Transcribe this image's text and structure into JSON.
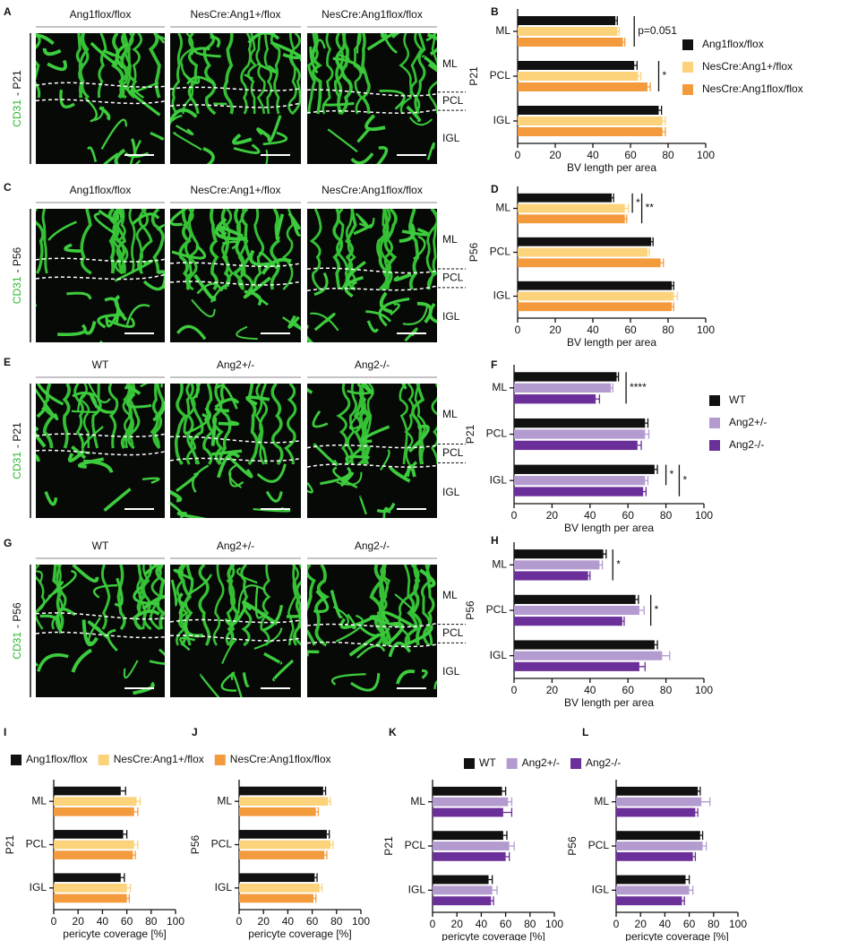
{
  "image_panels": [
    {
      "panel": "A",
      "stain": "CD31",
      "age": "- P21",
      "genotypes": [
        "Ang1flox/flox",
        "NesCre:Ang1+/flox",
        "NesCre:Ang1flox/flox"
      ],
      "layers": [
        "ML",
        "PCL",
        "IGL"
      ]
    },
    {
      "panel": "C",
      "stain": "CD31",
      "age": "- P56",
      "genotypes": [
        "Ang1flox/flox",
        "NesCre:Ang1+/flox",
        "NesCre:Ang1flox/flox"
      ],
      "layers": [
        "ML",
        "PCL",
        "IGL"
      ]
    },
    {
      "panel": "E",
      "stain": "CD31",
      "age": "- P21",
      "genotypes": [
        "WT",
        "Ang2+/-",
        "Ang2-/-"
      ],
      "layers": [
        "ML",
        "PCL",
        "IGL"
      ]
    },
    {
      "panel": "G",
      "stain": "CD31",
      "age": "- P56",
      "genotypes": [
        "WT",
        "Ang2+/-",
        "Ang2-/-"
      ],
      "layers": [
        "ML",
        "PCL",
        "IGL"
      ]
    }
  ],
  "chart_data": [
    {
      "type": "bar",
      "panel": "B",
      "orientation": "horizontal",
      "ylabel": "P21",
      "xlabel": "BV length per area",
      "categories": [
        "ML",
        "PCL",
        "IGL"
      ],
      "series": [
        {
          "name": "Ang1flox/flox",
          "color": "#111111",
          "values": [
            52,
            62,
            75
          ],
          "errors": [
            1,
            1.5,
            1.5
          ]
        },
        {
          "name": "NesCre:Ang1+/flox",
          "color": "#fcd27a",
          "values": [
            53,
            64,
            77
          ],
          "errors": [
            1,
            1.5,
            1.5
          ]
        },
        {
          "name": "NesCre:Ang1flox/flox",
          "color": "#f39a3c",
          "values": [
            56,
            69,
            77
          ],
          "errors": [
            1,
            1.5,
            1.5
          ]
        }
      ],
      "xlim": [
        0,
        100
      ],
      "xticks": [
        0,
        20,
        40,
        60,
        80,
        100
      ],
      "legend": "right",
      "annotations": [
        "p=0.051",
        "*"
      ]
    },
    {
      "type": "bar",
      "panel": "D",
      "orientation": "horizontal",
      "ylabel": "P56",
      "xlabel": "BV length per area",
      "categories": [
        "ML",
        "PCL",
        "IGL"
      ],
      "series": [
        {
          "color": "#111111",
          "values": [
            50,
            71,
            82
          ],
          "errors": [
            1,
            1,
            1
          ]
        },
        {
          "color": "#fcd27a",
          "values": [
            57,
            69,
            83
          ],
          "errors": [
            2,
            1,
            2
          ]
        },
        {
          "color": "#f39a3c",
          "values": [
            57,
            76,
            82
          ],
          "errors": [
            1,
            1.5,
            1
          ]
        }
      ],
      "xlim": [
        0,
        100
      ],
      "xticks": [
        0,
        20,
        40,
        60,
        80,
        100
      ],
      "annotations": [
        "*",
        "**"
      ]
    },
    {
      "type": "bar",
      "panel": "F",
      "orientation": "horizontal",
      "ylabel": "P21",
      "xlabel": "BV length per area",
      "categories": [
        "ML",
        "PCL",
        "IGL"
      ],
      "series": [
        {
          "name": "WT",
          "color": "#111111",
          "values": [
            54,
            69,
            74
          ],
          "errors": [
            1,
            1.5,
            1.5
          ]
        },
        {
          "name": "Ang2+/-",
          "color": "#b39bd0",
          "values": [
            51,
            69,
            69
          ],
          "errors": [
            1,
            2,
            1.5
          ]
        },
        {
          "name": "Ang2-/-",
          "color": "#6a2f98",
          "values": [
            43,
            65,
            68
          ],
          "errors": [
            2,
            2,
            1.5
          ]
        }
      ],
      "xlim": [
        0,
        100
      ],
      "xticks": [
        0,
        20,
        40,
        60,
        80,
        100
      ],
      "legend": "right",
      "annotations": [
        "****",
        "*",
        "*"
      ]
    },
    {
      "type": "bar",
      "panel": "H",
      "orientation": "horizontal",
      "ylabel": "P56",
      "xlabel": "BV length per area",
      "categories": [
        "ML",
        "PCL",
        "IGL"
      ],
      "series": [
        {
          "color": "#111111",
          "values": [
            47,
            64,
            74
          ],
          "errors": [
            1.5,
            1.5,
            1.5
          ]
        },
        {
          "color": "#b39bd0",
          "values": [
            45,
            66,
            78
          ],
          "errors": [
            1.5,
            2.5,
            4
          ]
        },
        {
          "color": "#6a2f98",
          "values": [
            39,
            57,
            66
          ],
          "errors": [
            1,
            1,
            3
          ]
        }
      ],
      "xlim": [
        0,
        100
      ],
      "xticks": [
        0,
        20,
        40,
        60,
        80,
        100
      ],
      "annotations": [
        "*",
        "*"
      ]
    },
    {
      "type": "bar",
      "panel": "I",
      "orientation": "horizontal",
      "ylabel": "P21",
      "xlabel": "pericyte coverage [%]",
      "categories": [
        "ML",
        "PCL",
        "IGL"
      ],
      "series": [
        {
          "name": "Ang1flox/flox",
          "color": "#111111",
          "values": [
            55,
            57,
            55
          ],
          "errors": [
            4,
            3,
            3
          ]
        },
        {
          "name": "NesCre:Ang1+/flox",
          "color": "#fcd27a",
          "values": [
            68,
            66,
            60
          ],
          "errors": [
            3,
            3,
            3
          ]
        },
        {
          "name": "NesCre:Ang1flox/flox",
          "color": "#f39a3c",
          "values": [
            66,
            65,
            60
          ],
          "errors": [
            3,
            2,
            2
          ]
        }
      ],
      "xlim": [
        0,
        100
      ],
      "xticks": [
        0,
        20,
        40,
        60,
        80,
        100
      ],
      "legend": "top"
    },
    {
      "type": "bar",
      "panel": "J",
      "orientation": "horizontal",
      "ylabel": "P56",
      "xlabel": "pericyte coverage [%]",
      "categories": [
        "ML",
        "PCL",
        "IGL"
      ],
      "series": [
        {
          "color": "#111111",
          "values": [
            69,
            72,
            62
          ],
          "errors": [
            2,
            2,
            2
          ]
        },
        {
          "color": "#fcd27a",
          "values": [
            73,
            75,
            66
          ],
          "errors": [
            2,
            2,
            2
          ]
        },
        {
          "color": "#f39a3c",
          "values": [
            63,
            70,
            61
          ],
          "errors": [
            2,
            2,
            2
          ]
        }
      ],
      "xlim": [
        0,
        100
      ],
      "xticks": [
        0,
        20,
        40,
        60,
        80,
        100
      ]
    },
    {
      "type": "bar",
      "panel": "K",
      "orientation": "horizontal",
      "ylabel": "P21",
      "xlabel": "pericyte coverage [%]",
      "categories": [
        "ML",
        "PCL",
        "IGL"
      ],
      "series": [
        {
          "name": "WT",
          "color": "#111111",
          "values": [
            57,
            58,
            46
          ],
          "errors": [
            3,
            3,
            3
          ]
        },
        {
          "name": "Ang2+/-",
          "color": "#b39bd0",
          "values": [
            62,
            63,
            49
          ],
          "errors": [
            3,
            4,
            4
          ]
        },
        {
          "name": "Ang2-/-",
          "color": "#6a2f98",
          "values": [
            58,
            60,
            48
          ],
          "errors": [
            7,
            3,
            2
          ]
        }
      ],
      "xlim": [
        0,
        100
      ],
      "xticks": [
        0,
        20,
        40,
        60,
        80,
        100
      ],
      "legend": "top"
    },
    {
      "type": "bar",
      "panel": "L",
      "orientation": "horizontal",
      "ylabel": "P56",
      "xlabel": "pericyte coverage [%]",
      "categories": [
        "ML",
        "PCL",
        "IGL"
      ],
      "series": [
        {
          "color": "#111111",
          "values": [
            67,
            69,
            57
          ],
          "errors": [
            2,
            2,
            3
          ]
        },
        {
          "color": "#b39bd0",
          "values": [
            70,
            71,
            60
          ],
          "errors": [
            7,
            3,
            3
          ]
        },
        {
          "color": "#6a2f98",
          "values": [
            65,
            63,
            54
          ],
          "errors": [
            2,
            2,
            2
          ]
        }
      ],
      "xlim": [
        0,
        100
      ],
      "xticks": [
        0,
        20,
        40,
        60,
        80,
        100
      ]
    }
  ]
}
